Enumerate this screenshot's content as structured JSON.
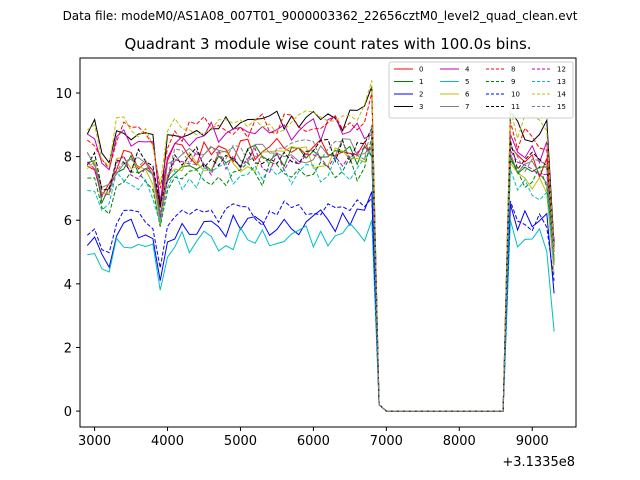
{
  "header": {
    "subtitle": "Data file: modeM0/AS1A08_007T01_9000003362_22656cztM0_level2_quad_clean.evt",
    "title": "Quadrant 3 module wise count rates with 100.0s bins."
  },
  "chart_data": {
    "type": "line",
    "title": "Quadrant 3 module wise count rates with 100.0s bins.",
    "subtitle": "Data file: modeM0/AS1A08_007T01_9000003362_22656cztM0_level2_quad_clean.evt",
    "xlabel": "",
    "ylabel": "",
    "x_offset_label": "+3.1335e8",
    "xlim": [
      2800,
      9600
    ],
    "ylim": [
      -0.5,
      11.1
    ],
    "x_ticks": [
      3000,
      4000,
      5000,
      6000,
      7000,
      8000,
      9000
    ],
    "x_tick_labels": [
      "3000",
      "4000",
      "5000",
      "6000",
      "7000",
      "8000",
      "9000"
    ],
    "y_ticks": [
      0,
      2,
      4,
      6,
      8,
      10
    ],
    "y_tick_labels": [
      "0",
      "2",
      "4",
      "6",
      "8",
      "10"
    ],
    "legend_position": "top-right",
    "legend_columns": 4,
    "segments": [
      {
        "x_start": 2900,
        "x_end": 6800
      },
      {
        "x_start": 8600,
        "x_end": 9300
      }
    ],
    "zero_span": [
      7000,
      8600
    ],
    "series": [
      {
        "name": "0",
        "color": "#ff0000",
        "dash": "solid",
        "base": 7.9,
        "dip": 6.4,
        "gap_end": 8.0,
        "second": 7.7,
        "final": 5.0
      },
      {
        "name": "1",
        "color": "#008000",
        "dash": "solid",
        "base": 7.7,
        "dip": 6.2,
        "gap_end": 8.0,
        "second": 7.4,
        "final": 4.7
      },
      {
        "name": "2",
        "color": "#0000ff",
        "dash": "solid",
        "base": 5.6,
        "dip": 4.1,
        "gap_end": 6.9,
        "second": 5.9,
        "final": 3.7
      },
      {
        "name": "3",
        "color": "#000000",
        "dash": "solid",
        "base": 8.8,
        "dip": 6.4,
        "gap_end": 10.2,
        "second": 8.8,
        "final": 5.2
      },
      {
        "name": "4",
        "color": "#bf00bf",
        "dash": "solid",
        "base": 8.5,
        "dip": 6.6,
        "gap_end": 8.7,
        "second": 8.1,
        "final": 5.1
      },
      {
        "name": "5",
        "color": "#00bfbf",
        "dash": "solid",
        "base": 5.2,
        "dip": 3.8,
        "gap_end": 6.0,
        "second": 5.4,
        "final": 2.5
      },
      {
        "name": "6",
        "color": "#bfbf00",
        "dash": "solid",
        "base": 7.6,
        "dip": 5.8,
        "gap_end": 8.4,
        "second": 7.2,
        "final": 4.3
      },
      {
        "name": "7",
        "color": "#808080",
        "dash": "solid",
        "base": 7.8,
        "dip": 6.0,
        "gap_end": 8.3,
        "second": 7.5,
        "final": 4.6
      },
      {
        "name": "8",
        "color": "#ff0000",
        "dash": "dashed",
        "base": 8.7,
        "dip": 7.0,
        "gap_end": 10.0,
        "second": 8.5,
        "final": 5.0
      },
      {
        "name": "9",
        "color": "#008000",
        "dash": "dashed",
        "base": 7.2,
        "dip": 5.8,
        "gap_end": 8.6,
        "second": 7.3,
        "final": 4.8
      },
      {
        "name": "10",
        "color": "#0000ff",
        "dash": "dashed",
        "base": 5.9,
        "dip": 4.5,
        "gap_end": 6.7,
        "second": 6.0,
        "final": 4.1
      },
      {
        "name": "11",
        "color": "#000000",
        "dash": "dashed",
        "base": 7.8,
        "dip": 6.5,
        "gap_end": 8.9,
        "second": 7.9,
        "final": 5.3
      },
      {
        "name": "12",
        "color": "#bf00bf",
        "dash": "dashed",
        "base": 7.6,
        "dip": 6.1,
        "gap_end": 8.2,
        "second": 7.6,
        "final": 5.4
      },
      {
        "name": "13",
        "color": "#00bfbf",
        "dash": "dashed",
        "base": 7.2,
        "dip": 5.9,
        "gap_end": 8.2,
        "second": 7.0,
        "final": 4.8
      },
      {
        "name": "14",
        "color": "#bfbf00",
        "dash": "dashed",
        "base": 8.8,
        "dip": 7.1,
        "gap_end": 10.4,
        "second": 8.9,
        "final": 5.0
      },
      {
        "name": "15",
        "color": "#808080",
        "dash": "dashed",
        "base": 7.8,
        "dip": 6.2,
        "gap_end": 9.0,
        "second": 7.8,
        "final": 4.9
      }
    ]
  }
}
